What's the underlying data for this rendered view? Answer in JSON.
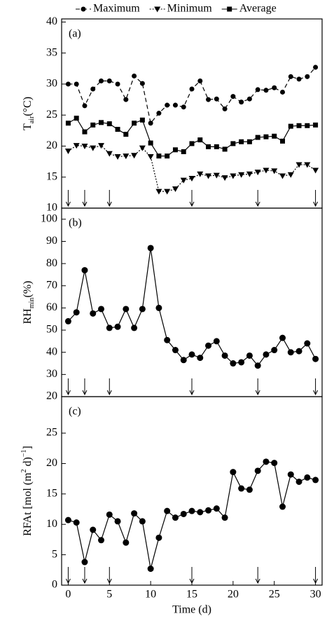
{
  "chart_data": [
    {
      "type": "line",
      "panel_label": "(a)",
      "ylabel": [
        {
          "text": "T"
        },
        {
          "text": "air",
          "shift": "sub"
        },
        {
          "text": "(°C)"
        }
      ],
      "x": [
        0,
        1,
        2,
        3,
        4,
        5,
        6,
        7,
        8,
        9,
        10,
        11,
        12,
        13,
        14,
        15,
        16,
        17,
        18,
        19,
        20,
        21,
        22,
        23,
        24,
        25,
        26,
        27,
        28,
        29,
        30
      ],
      "xlim": [
        -0.8,
        30.8
      ],
      "ylim": [
        10,
        40.5
      ],
      "yticks": [
        10,
        15,
        20,
        25,
        30,
        35,
        40
      ],
      "legend": "top",
      "series": [
        {
          "name": "Maximum",
          "color": "#000",
          "marker": "circle",
          "dash": "6,4",
          "values": [
            30,
            30,
            26.5,
            29.2,
            30.5,
            30.5,
            30,
            27.5,
            31.3,
            30.1,
            23.7,
            25.3,
            26.6,
            26.6,
            26.3,
            29.2,
            30.5,
            27.5,
            27.6,
            26,
            28,
            27.1,
            27.6,
            29.1,
            29,
            29.4,
            28.7,
            31.2,
            30.8,
            31.2,
            32.7
          ]
        },
        {
          "name": "Minimum",
          "color": "#000",
          "marker": "triangle-down",
          "dash": "2,2",
          "values": [
            19.2,
            20.1,
            20,
            19.7,
            20.1,
            18.8,
            18.3,
            18.4,
            18.5,
            19.7,
            18.3,
            12.7,
            12.7,
            13.1,
            14.5,
            14.8,
            15.5,
            15.2,
            15.3,
            14.9,
            15.2,
            15.4,
            15.5,
            15.8,
            16.1,
            16,
            15.2,
            15.4,
            17,
            17,
            16.1
          ]
        },
        {
          "name": "Average",
          "color": "#000",
          "marker": "square",
          "dash": "none",
          "values": [
            23.7,
            24.5,
            22.3,
            23.4,
            23.8,
            23.6,
            22.7,
            21.9,
            23.7,
            24.2,
            20.5,
            18.4,
            18.4,
            19.4,
            19.1,
            20.4,
            21,
            19.9,
            19.9,
            19.5,
            20.4,
            20.7,
            20.7,
            21.4,
            21.5,
            21.6,
            20.8,
            23.2,
            23.3,
            23.3,
            23.4
          ]
        }
      ],
      "arrows": [
        0,
        2,
        5,
        15,
        23,
        30
      ]
    },
    {
      "type": "line",
      "panel_label": "(b)",
      "ylabel": [
        {
          "text": "RH"
        },
        {
          "text": "min",
          "shift": "sub"
        },
        {
          "text": "(%)"
        }
      ],
      "x": [
        0,
        1,
        2,
        3,
        4,
        5,
        6,
        7,
        8,
        9,
        10,
        11,
        12,
        13,
        14,
        15,
        16,
        17,
        18,
        19,
        20,
        21,
        22,
        23,
        24,
        25,
        26,
        27,
        28,
        29,
        30
      ],
      "xlim": [
        -0.8,
        30.8
      ],
      "ylim": [
        20,
        105
      ],
      "yticks": [
        20,
        30,
        40,
        50,
        60,
        70,
        80,
        90,
        100
      ],
      "color": "#000",
      "marker": "circle",
      "values": [
        54,
        58,
        77,
        57.5,
        59.5,
        51,
        51.5,
        59.5,
        51,
        59.5,
        87,
        60,
        45.5,
        41,
        36.5,
        39,
        37.5,
        43,
        45,
        38.5,
        35,
        35.5,
        38.5,
        34,
        39,
        41,
        46.5,
        40,
        40.5,
        44,
        37
      ],
      "arrows": [
        0,
        2,
        5,
        15,
        23,
        30
      ]
    },
    {
      "type": "line",
      "panel_label": "(c)",
      "ylabel": [
        {
          "text": "RFAt [mol (m"
        },
        {
          "text": "2",
          "shift": "super"
        },
        {
          "text": " d)"
        },
        {
          "text": "−1",
          "shift": "super"
        },
        {
          "text": "]"
        }
      ],
      "xlabel": "Time (d)",
      "x": [
        0,
        1,
        2,
        3,
        4,
        5,
        6,
        7,
        8,
        9,
        10,
        11,
        12,
        13,
        14,
        15,
        16,
        17,
        18,
        19,
        20,
        21,
        22,
        23,
        24,
        25,
        26,
        27,
        28,
        29,
        30
      ],
      "xlim": [
        -0.8,
        30.8
      ],
      "ylim": [
        0,
        31
      ],
      "yticks": [
        0,
        5,
        10,
        15,
        20,
        25
      ],
      "xticks": [
        0,
        5,
        10,
        15,
        20,
        25,
        30
      ],
      "color": "#000",
      "marker": "circle",
      "values": [
        10.7,
        10.3,
        3.8,
        9.1,
        7.4,
        11.6,
        10.5,
        7,
        11.8,
        10.5,
        2.7,
        7.8,
        12.2,
        11.1,
        11.7,
        12.2,
        12,
        12.3,
        12.6,
        11.1,
        18.6,
        15.9,
        15.7,
        18.8,
        20.3,
        20.1,
        12.9,
        18.2,
        17,
        17.7,
        17.3
      ],
      "arrows": [
        0,
        2,
        5,
        15,
        23,
        30
      ]
    }
  ]
}
